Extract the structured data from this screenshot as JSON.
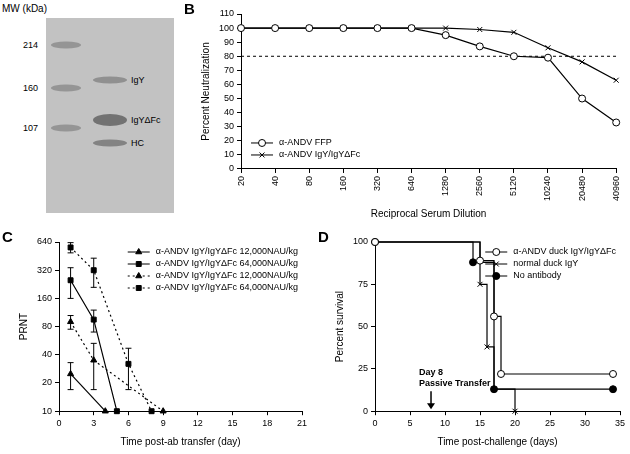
{
  "gel": {
    "title": "MW (kDa)",
    "markers": [
      214,
      160,
      107
    ],
    "bands": [
      "IgY",
      "IgYΔFc",
      "HC"
    ]
  },
  "chart_data": [
    {
      "panel": "B",
      "type": "line",
      "xlabel": "Reciprocal Serum Dilution",
      "ylabel": "Percent Neutralization",
      "categories": [
        20,
        40,
        80,
        160,
        320,
        640,
        1280,
        2560,
        5120,
        10240,
        20480,
        40960
      ],
      "ylim": [
        0,
        110
      ],
      "yticks": [
        0,
        10,
        20,
        30,
        40,
        50,
        60,
        70,
        80,
        90,
        100,
        110
      ],
      "grid": false,
      "legend": "lower left",
      "threshold": 80,
      "series": [
        {
          "name": "α-ANDV FFP",
          "color": "#000000",
          "marker": "circle_open",
          "line_style": "solid",
          "values": [
            100,
            100,
            100,
            100,
            100,
            100,
            95,
            87,
            80,
            79,
            50,
            33
          ]
        },
        {
          "name": "α-ANDV IgY/IgYΔFc",
          "color": "#000000",
          "marker": "x",
          "line_style": "solid",
          "values": [
            100,
            100,
            100,
            100,
            100,
            100,
            100,
            99,
            97,
            86,
            76,
            63
          ]
        }
      ]
    },
    {
      "panel": "C",
      "type": "line",
      "xlabel": "Time post-ab transfer (day)",
      "ylabel": "PRNT",
      "log": "y",
      "xlim": [
        0,
        21
      ],
      "xticks": [
        0,
        3,
        6,
        9,
        12,
        15,
        18,
        21
      ],
      "ylim": [
        10,
        640
      ],
      "yticks": [
        10,
        20,
        40,
        80,
        160,
        320,
        640
      ],
      "grid": false,
      "legend": "upper right",
      "series": [
        {
          "name": "α-ANDV IgY/IgYΔFc 12,000NAU/kg",
          "color": "#000000",
          "marker": "triangle",
          "line_style": "solid",
          "x": [
            1,
            4
          ],
          "values": [
            25,
            10
          ],
          "errors": [
            8,
            0
          ]
        },
        {
          "name": "α-ANDV IgY/IgYΔFc 64,000NAU/kg",
          "color": "#000000",
          "marker": "square",
          "line_style": "solid",
          "x": [
            1,
            3,
            5
          ],
          "values": [
            250,
            95,
            10
          ],
          "errors": [
            90,
            25,
            0
          ]
        },
        {
          "name": "α-ANDV IgY/IgYΔFc 12,000NAU/kg",
          "color": "#000000",
          "marker": "triangle",
          "line_style": "dotted",
          "x": [
            1,
            3,
            9
          ],
          "values": [
            90,
            35,
            10
          ],
          "errors": [
            15,
            18,
            0
          ]
        },
        {
          "name": "α-ANDV IgY/IgYΔFc 64,000NAU/kg",
          "color": "#000000",
          "marker": "square",
          "line_style": "dotted",
          "x": [
            1,
            3,
            6,
            8
          ],
          "values": [
            560,
            320,
            32,
            10
          ],
          "errors": [
            70,
            110,
            15,
            0
          ]
        }
      ]
    },
    {
      "panel": "D",
      "type": "step",
      "xlabel": "Time post-challenge (days)",
      "ylabel": "Percent survival",
      "xlim": [
        0,
        35
      ],
      "xticks": [
        0,
        5,
        10,
        15,
        20,
        25,
        30,
        35
      ],
      "ylim": [
        0,
        100
      ],
      "yticks": [
        0,
        25,
        50,
        75,
        100
      ],
      "grid": false,
      "legend": "upper right",
      "annotations": [
        {
          "x": 8,
          "text": [
            "Day 8",
            "Passive Transfer"
          ]
        }
      ],
      "series": [
        {
          "name": "α-ANDV duck IgY/IgYΔFc",
          "color": "#000000",
          "marker": "circle_open",
          "line_style": "solid",
          "x": [
            0,
            15,
            17,
            18,
            34
          ],
          "values": [
            100,
            89,
            56,
            22,
            22
          ]
        },
        {
          "name": "normal duck IgY",
          "color": "#000000",
          "marker": "x",
          "line_style": "solid",
          "x": [
            0,
            15,
            16,
            17,
            20
          ],
          "values": [
            100,
            75,
            38,
            13,
            0
          ]
        },
        {
          "name": "No antibody",
          "color": "#000000",
          "marker": "circle",
          "line_style": "solid",
          "x": [
            0,
            14,
            17,
            34
          ],
          "values": [
            100,
            88,
            13,
            13
          ]
        }
      ]
    }
  ]
}
